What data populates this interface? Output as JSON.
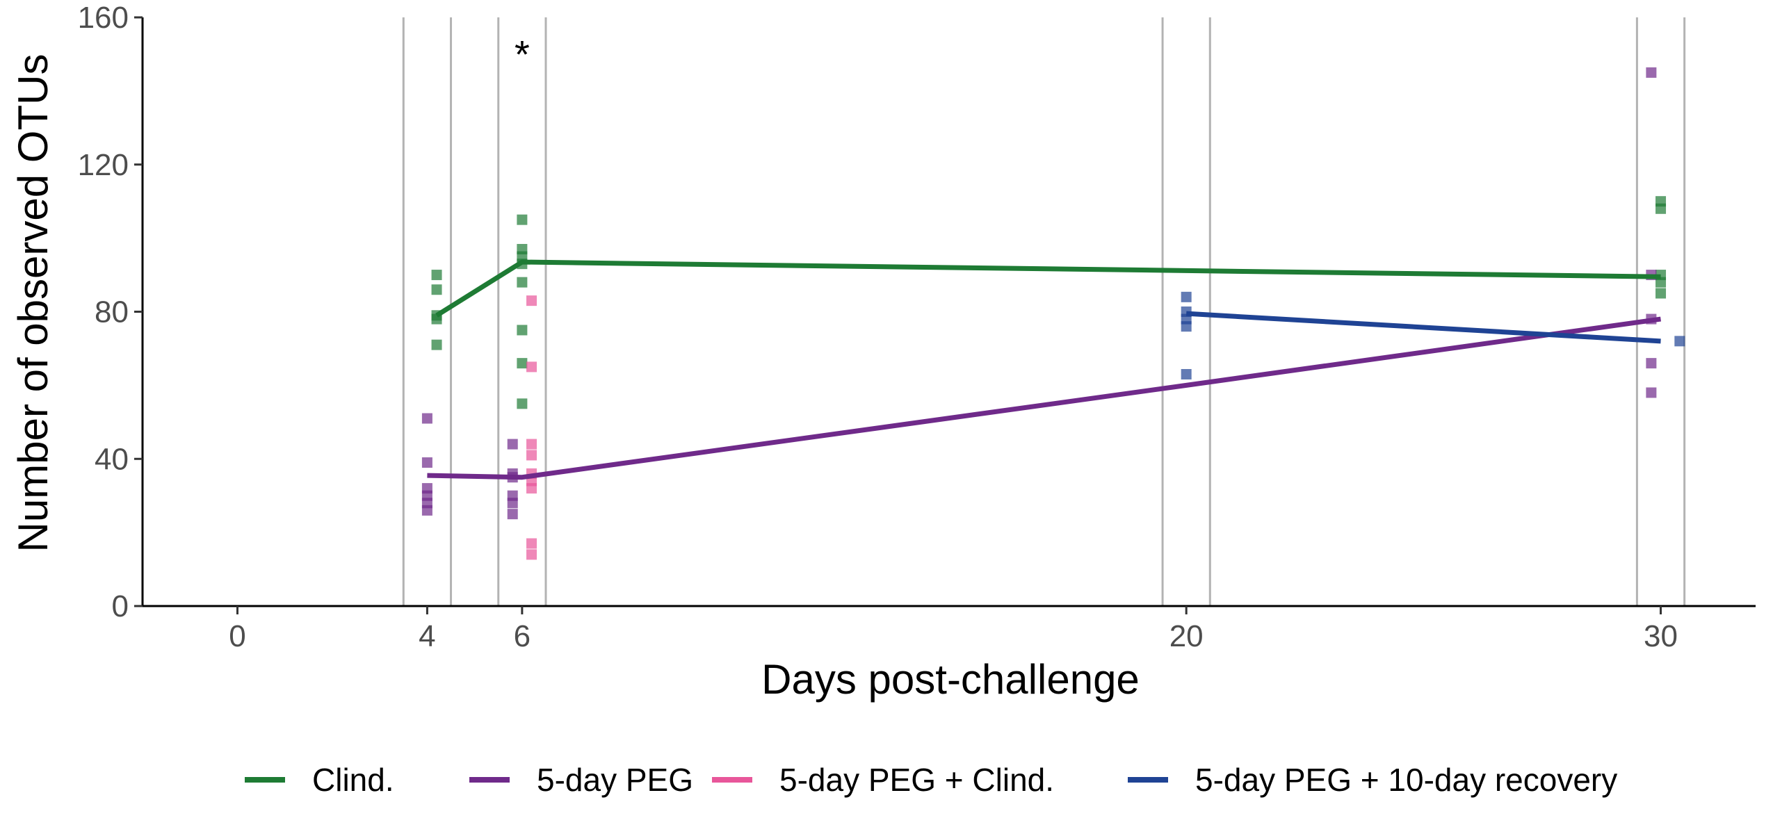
{
  "chart_data": {
    "type": "line",
    "title": "",
    "xlabel": "Days post-challenge",
    "ylabel": "Number of observed OTUs",
    "xlim": [
      -2,
      32
    ],
    "ylim": [
      0,
      160
    ],
    "x_ticks": [
      0,
      4,
      6,
      20,
      30
    ],
    "y_ticks": [
      0,
      40,
      80,
      120,
      160
    ],
    "grid": false,
    "vertical_lines": [
      3.5,
      4.5,
      5.5,
      6.5,
      19.5,
      20.5,
      29.5,
      30.5
    ],
    "legend_position": "bottom",
    "annotations": [
      {
        "text": "*",
        "x": 6,
        "y": 152
      }
    ],
    "series": [
      {
        "name": "Clind.",
        "color": "#1e7b34",
        "line": {
          "x": [
            4.2,
            6,
            30
          ],
          "y": [
            79,
            93.5,
            89.5
          ]
        },
        "points": [
          {
            "x": 4.2,
            "y": 90
          },
          {
            "x": 4.2,
            "y": 86
          },
          {
            "x": 4.2,
            "y": 79
          },
          {
            "x": 4.2,
            "y": 78
          },
          {
            "x": 4.2,
            "y": 71
          },
          {
            "x": 6,
            "y": 105
          },
          {
            "x": 6,
            "y": 97
          },
          {
            "x": 6,
            "y": 95
          },
          {
            "x": 6,
            "y": 93
          },
          {
            "x": 6,
            "y": 88
          },
          {
            "x": 6,
            "y": 75
          },
          {
            "x": 6,
            "y": 66
          },
          {
            "x": 6,
            "y": 55
          },
          {
            "x": 30,
            "y": 110
          },
          {
            "x": 30,
            "y": 108
          },
          {
            "x": 30,
            "y": 90
          },
          {
            "x": 30,
            "y": 88
          },
          {
            "x": 30,
            "y": 85
          }
        ]
      },
      {
        "name": "5-day PEG",
        "color": "#6f2a8a",
        "line": {
          "x": [
            4,
            6,
            20,
            30
          ],
          "y": [
            35.5,
            35,
            60,
            78
          ]
        },
        "points": [
          {
            "x": 4,
            "y": 51
          },
          {
            "x": 4,
            "y": 39
          },
          {
            "x": 4,
            "y": 32
          },
          {
            "x": 4,
            "y": 30
          },
          {
            "x": 4,
            "y": 28
          },
          {
            "x": 4,
            "y": 26
          },
          {
            "x": 5.8,
            "y": 44
          },
          {
            "x": 5.8,
            "y": 36
          },
          {
            "x": 5.8,
            "y": 35
          },
          {
            "x": 5.8,
            "y": 30
          },
          {
            "x": 5.8,
            "y": 28
          },
          {
            "x": 5.8,
            "y": 25
          },
          {
            "x": 29.8,
            "y": 145
          },
          {
            "x": 29.8,
            "y": 90
          },
          {
            "x": 29.8,
            "y": 78
          },
          {
            "x": 29.8,
            "y": 66
          },
          {
            "x": 29.8,
            "y": 58
          }
        ]
      },
      {
        "name": "5-day PEG + Clind.",
        "color": "#e8569a",
        "line": null,
        "points": [
          {
            "x": 6.2,
            "y": 83
          },
          {
            "x": 6.2,
            "y": 65
          },
          {
            "x": 6.2,
            "y": 44
          },
          {
            "x": 6.2,
            "y": 41
          },
          {
            "x": 6.2,
            "y": 36
          },
          {
            "x": 6.2,
            "y": 34
          },
          {
            "x": 6.2,
            "y": 32
          },
          {
            "x": 6.2,
            "y": 17
          },
          {
            "x": 6.2,
            "y": 14
          }
        ]
      },
      {
        "name": "5-day PEG + 10-day recovery",
        "color": "#1f4394",
        "line": {
          "x": [
            20,
            30
          ],
          "y": [
            79.5,
            72
          ]
        },
        "points": [
          {
            "x": 20,
            "y": 84
          },
          {
            "x": 20,
            "y": 80
          },
          {
            "x": 20,
            "y": 78
          },
          {
            "x": 20,
            "y": 76
          },
          {
            "x": 20,
            "y": 63
          },
          {
            "x": 30.4,
            "y": 72
          }
        ]
      }
    ]
  }
}
